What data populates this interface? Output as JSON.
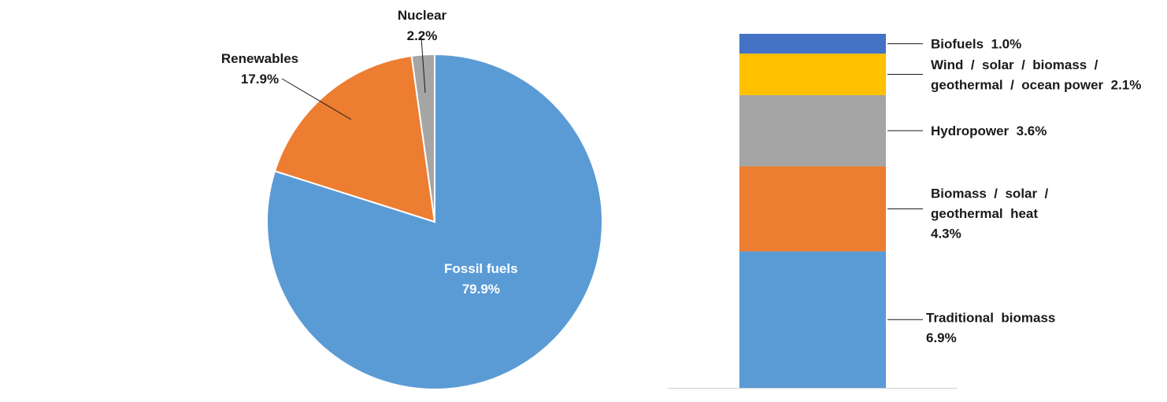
{
  "chart_data": [
    {
      "type": "pie",
      "title": "",
      "start_angle_deg": 0,
      "direction": "clockwise",
      "slices": [
        {
          "name": "Fossil fuels",
          "value": 79.9,
          "value_label": "79.9%",
          "color": "#5B9BD5",
          "label_position": "inside"
        },
        {
          "name": "Renewables",
          "value": 17.9,
          "value_label": "17.9%",
          "color": "#ED7D31",
          "label_position": "outside"
        },
        {
          "name": "Nuclear",
          "value": 2.2,
          "value_label": "2.2%",
          "color": "#A5A5A5",
          "label_position": "outside"
        }
      ]
    },
    {
      "type": "bar",
      "stacked": true,
      "title": "",
      "description": "Breakdown of Renewables share",
      "ylim": [
        0,
        17.9
      ],
      "segments": [
        {
          "name": "Traditional biomass",
          "value": 6.9,
          "label_lines": [
            "Traditional  biomass",
            "6.9%"
          ],
          "color": "#5B9BD5"
        },
        {
          "name": "Biomass / solar / geothermal heat",
          "value": 4.3,
          "label_lines": [
            "Biomass  /  solar  /",
            "geothermal  heat",
            "4.3%"
          ],
          "color": "#ED7D31"
        },
        {
          "name": "Hydropower",
          "value": 3.6,
          "label_lines": [
            "Hydropower  3.6%"
          ],
          "color": "#A5A5A5"
        },
        {
          "name": "Wind / solar / biomass / geothermal / ocean power",
          "value": 2.1,
          "label_lines": [
            "Wind  /  solar  /  biomass  /",
            "geothermal  /  ocean power  2.1%"
          ],
          "color": "#FFC000"
        },
        {
          "name": "Biofuels",
          "value": 1.0,
          "label_lines": [
            "Biofuels  1.0%"
          ],
          "color": "#4472C4"
        }
      ]
    }
  ]
}
